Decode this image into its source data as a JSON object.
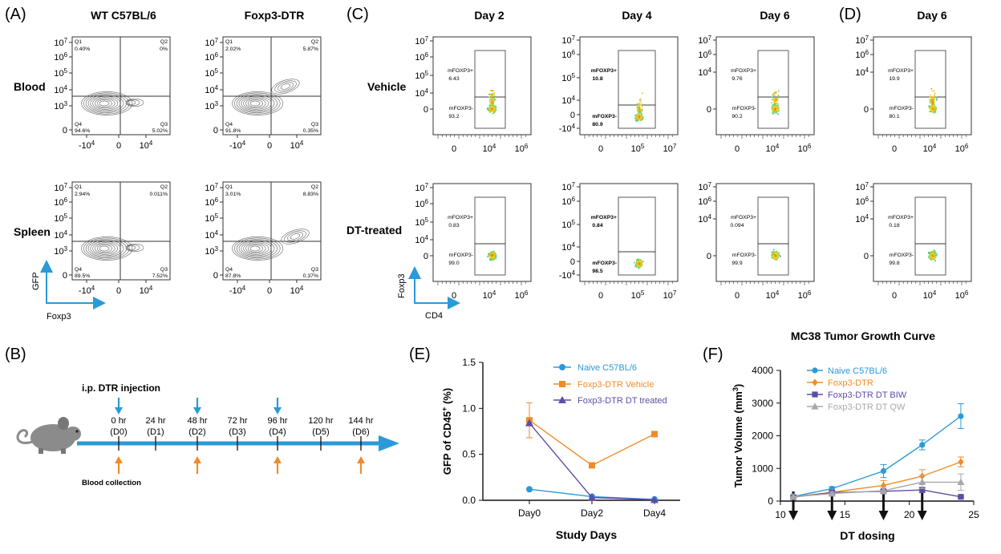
{
  "panels": {
    "A": "(A)",
    "B": "(B)",
    "C": "(C)",
    "D": "(D)",
    "E": "(E)",
    "F": "(F)"
  },
  "colors": {
    "blue": "#2a9ad8",
    "orange": "#f08c28",
    "purple": "#5b4ea8",
    "gray": "#a8a8a8",
    "black": "#111111"
  },
  "panel_a": {
    "col_titles": [
      "WT C57BL/6",
      "Foxp3-DTR"
    ],
    "row_titles": [
      "Blood",
      "Spleen"
    ],
    "x_axis_label": "Foxp3",
    "y_axis_label": "GFP",
    "y_ticks": [
      "10^7",
      "10^6",
      "10^5",
      "10^4",
      "10^3",
      "0"
    ],
    "x_ticks": [
      "-10^4",
      "0",
      "10^4"
    ],
    "plots": [
      {
        "row": 0,
        "col": 0,
        "q1": "Q1",
        "q1v": "0.40%",
        "q2": "Q2",
        "q2v": "0%",
        "q3": "Q3",
        "q3v": "5.02%",
        "q4": "Q4",
        "q4v": "94.6%"
      },
      {
        "row": 0,
        "col": 1,
        "q1": "Q1",
        "q1v": "2.02%",
        "q2": "Q2",
        "q2v": "5.87%",
        "q3": "Q3",
        "q3v": "0.35%",
        "q4": "Q4",
        "q4v": "91.8%"
      },
      {
        "row": 1,
        "col": 0,
        "q1": "Q1",
        "q1v": "2.94%",
        "q2": "Q2",
        "q2v": "0.011%",
        "q3": "Q3",
        "q3v": "7.52%",
        "q4": "Q4",
        "q4v": "89.5%"
      },
      {
        "row": 1,
        "col": 1,
        "q1": "Q1",
        "q1v": "3.01%",
        "q2": "Q2",
        "q2v": "8.83%",
        "q3": "Q3",
        "q3v": "0.37%",
        "q4": "Q4",
        "q4v": "87.8%"
      }
    ]
  },
  "panel_b": {
    "title": "i.p. DTR injection",
    "blood_label": "Blood collection",
    "timepoints": [
      {
        "hr": "0 hr",
        "day": "(D0)",
        "inj": true,
        "blood": true
      },
      {
        "hr": "24 hr",
        "day": "(D1)",
        "inj": false,
        "blood": false
      },
      {
        "hr": "48 hr",
        "day": "(D2)",
        "inj": true,
        "blood": true
      },
      {
        "hr": "72 hr",
        "day": "(D3)",
        "inj": false,
        "blood": false
      },
      {
        "hr": "96 hr",
        "day": "(D4)",
        "inj": true,
        "blood": true
      },
      {
        "hr": "120 hr",
        "day": "(D5)",
        "inj": false,
        "blood": false
      },
      {
        "hr": "144 hr",
        "day": "(D6)",
        "inj": false,
        "blood": true
      }
    ]
  },
  "panel_c": {
    "col_titles": [
      "Day 2",
      "Day 4",
      "Day 6"
    ],
    "row_titles": [
      "Vehicle",
      "DT-treated"
    ],
    "x_axis_label": "CD4",
    "y_axis_label": "Foxp3",
    "gates": [
      {
        "pos": "mFOXP3+",
        "posv": "6.43",
        "neg": "mFOXP3-",
        "negv": "93.2"
      },
      {
        "pos": "mFOXP3+",
        "posv": "10.8",
        "neg": "mFOXP3-",
        "negv": "80.9"
      },
      {
        "pos": "mFOXP3+",
        "posv": "9.76",
        "neg": "mFOXP3-",
        "negv": "90.2"
      },
      {
        "pos": "mFOXP3+",
        "posv": "0.83",
        "neg": "mFOXP3-",
        "negv": "99.0"
      },
      {
        "pos": "mFOXP3+",
        "posv": "0.84",
        "neg": "mFOXP3-",
        "negv": "98.5"
      },
      {
        "pos": "mFOXP3+",
        "posv": "0.094",
        "neg": "mFOXP3-",
        "negv": "99.9"
      }
    ]
  },
  "panel_d": {
    "col_title": "Day 6",
    "gates": [
      {
        "pos": "mFOXP3+",
        "posv": "19.9",
        "neg": "mFOXP3-",
        "negv": "80.1"
      },
      {
        "pos": "mFOXP3+",
        "posv": "0.18",
        "neg": "mFOXP3-",
        "negv": "99.8"
      }
    ]
  },
  "chart_data": [
    {
      "type": "line",
      "panel": "E",
      "title": "",
      "xlabel": "Study Days",
      "ylabel": "GFP of CD45+ (%)",
      "ylabel_main": "GFP of CD45",
      "ylabel_sup": "+",
      "ylabel_tail": " (%)",
      "categories": [
        "Day0",
        "Day2",
        "Day4"
      ],
      "ylim": [
        0,
        1.5
      ],
      "yticks": [
        "0.0",
        "0.5",
        "1.0",
        "1.5"
      ],
      "series": [
        {
          "name": "Naive C57BL/6",
          "color": "#2a9ad8",
          "marker": "circle",
          "values": [
            0.12,
            0.04,
            0.01
          ],
          "err": [
            0,
            0,
            0
          ]
        },
        {
          "name": "Foxp3-DTR Vehicle",
          "color": "#f08c28",
          "marker": "square",
          "values": [
            0.87,
            0.38,
            0.72
          ],
          "err": [
            0.19,
            0.02,
            0.02
          ]
        },
        {
          "name": "Foxp3-DTR DT treated",
          "color": "#5b4ea8",
          "marker": "triangle",
          "values": [
            0.84,
            0.03,
            0.005
          ],
          "err": [
            0,
            0,
            0
          ]
        }
      ]
    },
    {
      "type": "line",
      "panel": "F",
      "title": "MC38 Tumor Growth Curve",
      "xlabel": "DT dosing",
      "ylabel": "Tumor Volume (mm3)",
      "ylabel_main": "Tumor Volume (mm",
      "ylabel_sup": "3",
      "ylabel_tail": ")",
      "xlim": [
        10,
        25
      ],
      "xticks": [
        "10",
        "15",
        "20",
        "25"
      ],
      "ylim": [
        0,
        4000
      ],
      "yticks": [
        "0",
        "1000",
        "2000",
        "3000",
        "4000"
      ],
      "dosing_days": [
        11,
        14,
        18,
        21
      ],
      "series": [
        {
          "name": "Naive C57BL/6",
          "color": "#2a9ad8",
          "marker": "circle",
          "x": [
            11,
            14,
            18,
            21,
            24
          ],
          "values": [
            140,
            380,
            920,
            1720,
            2600
          ],
          "err": [
            40,
            60,
            200,
            150,
            380
          ]
        },
        {
          "name": "Foxp3-DTR",
          "color": "#f08c28",
          "marker": "diamond",
          "x": [
            11,
            14,
            18,
            21,
            24
          ],
          "values": [
            130,
            270,
            480,
            760,
            1200
          ],
          "err": [
            30,
            60,
            150,
            200,
            150
          ]
        },
        {
          "name": "Foxp3-DTR DT BIW",
          "color": "#5b4ea8",
          "marker": "square",
          "x": [
            11,
            14,
            18,
            21,
            24
          ],
          "values": [
            120,
            260,
            300,
            340,
            130
          ],
          "err": [
            20,
            40,
            50,
            80,
            20
          ]
        },
        {
          "name": "Foxp3-DTR DT QW",
          "color": "#a8a8a8",
          "marker": "triangle",
          "x": [
            11,
            14,
            18,
            21,
            24
          ],
          "values": [
            130,
            230,
            320,
            580,
            580
          ],
          "err": [
            20,
            50,
            100,
            200,
            250
          ]
        }
      ]
    }
  ]
}
